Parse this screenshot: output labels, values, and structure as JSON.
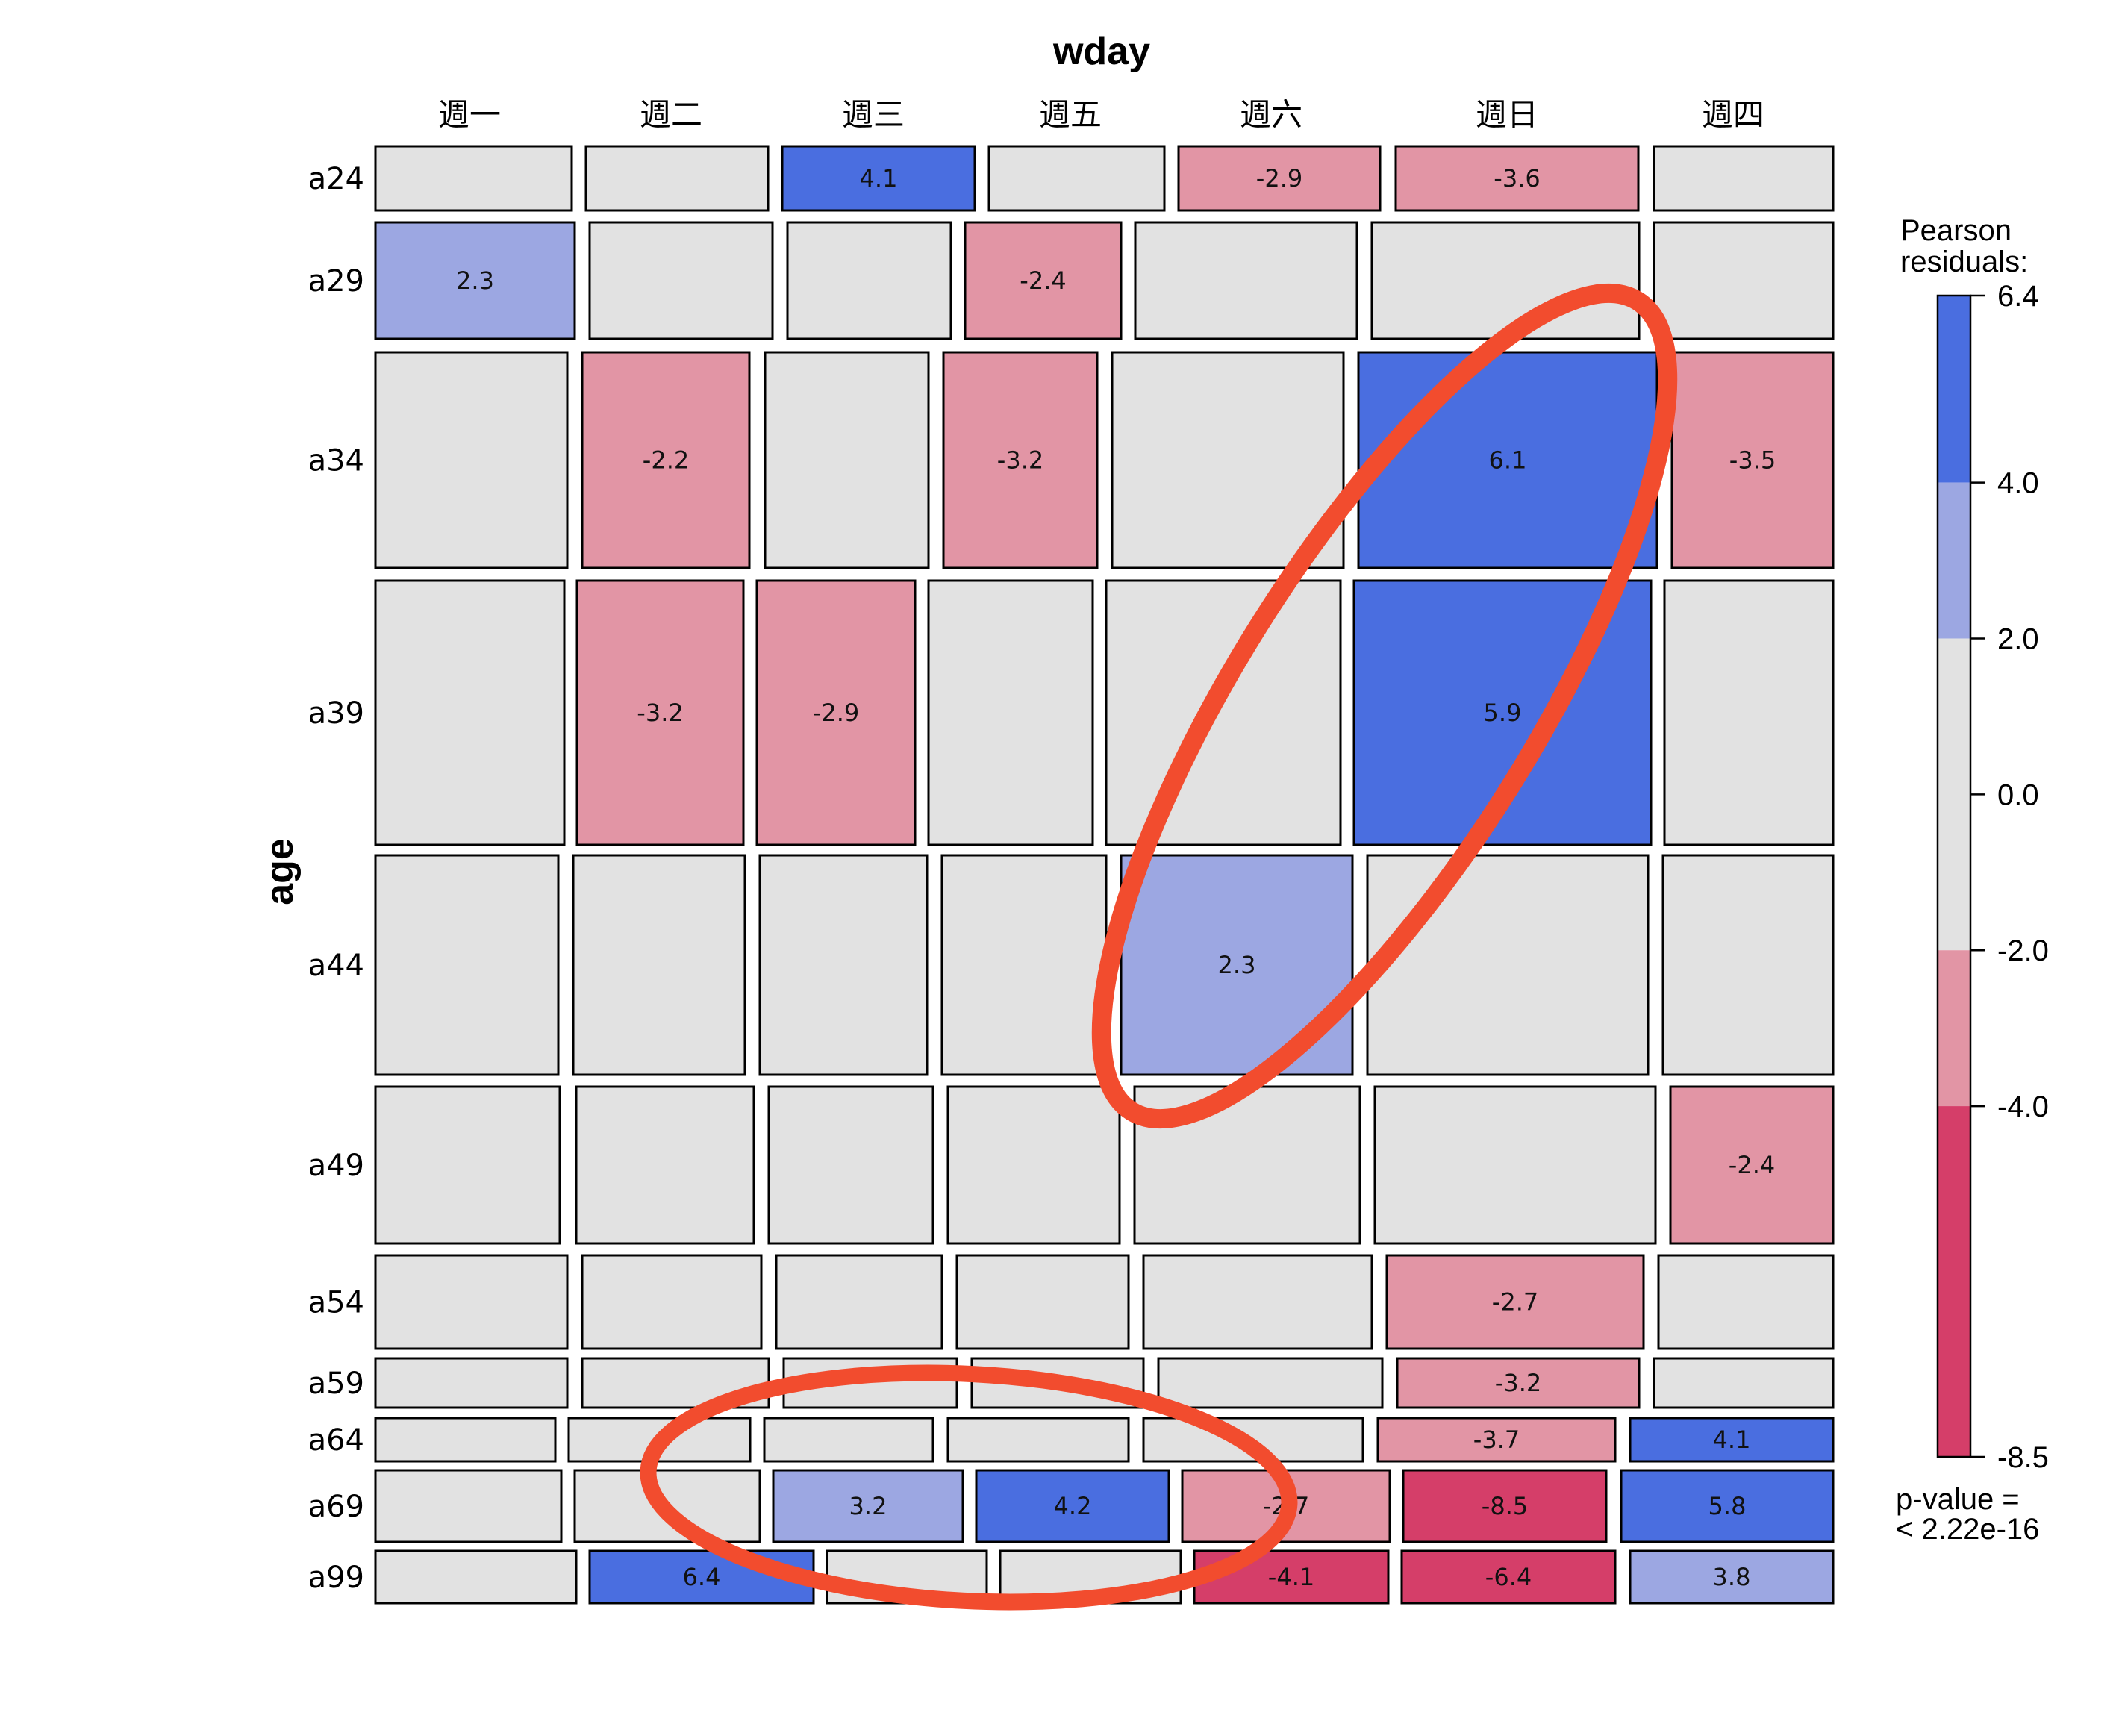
{
  "chart_data": {
    "type": "mosaic",
    "xlabel": "wday",
    "ylabel": "age",
    "columns": [
      "週一",
      "週二",
      "週三",
      "週五",
      "週六",
      "週日",
      "週四"
    ],
    "rows": [
      "a24",
      "a29",
      "a34",
      "a39",
      "a44",
      "a49",
      "a54",
      "a59",
      "a64",
      "a69",
      "a99"
    ],
    "residuals": [
      [
        null,
        null,
        4.1,
        null,
        -2.9,
        -3.6,
        null
      ],
      [
        2.3,
        null,
        null,
        -2.4,
        null,
        null,
        null
      ],
      [
        null,
        -2.2,
        null,
        -3.2,
        null,
        6.1,
        -3.5
      ],
      [
        null,
        -3.2,
        -2.9,
        null,
        null,
        5.9,
        null
      ],
      [
        null,
        null,
        null,
        null,
        2.3,
        null,
        null
      ],
      [
        null,
        null,
        null,
        null,
        null,
        null,
        -2.4
      ],
      [
        null,
        null,
        null,
        null,
        null,
        -2.7,
        null
      ],
      [
        null,
        null,
        null,
        null,
        null,
        -3.2,
        null
      ],
      [
        null,
        null,
        null,
        null,
        null,
        -3.7,
        4.1
      ],
      [
        null,
        null,
        3.2,
        4.2,
        -2.7,
        -8.5,
        5.8
      ],
      [
        null,
        6.4,
        null,
        null,
        -4.1,
        -6.4,
        3.8
      ]
    ],
    "legend": {
      "title_lines": [
        "Pearson",
        "residuals:"
      ],
      "ticks": [
        "6.4",
        "4.0",
        "2.0",
        "0.0",
        "-2.0",
        "-4.0",
        "-8.5"
      ],
      "range": [
        -8.5,
        6.4
      ],
      "footer_lines": [
        "p-value =",
        "< 2.22e-16"
      ]
    },
    "colors": {
      "strong_positive": "#4a6ee0",
      "moderate_positive": "#9ca7e2",
      "neutral": "#e2e2e2",
      "moderate_negative": "#e295a5",
      "strong_negative": "#d53e69",
      "annotation": "#f24c2e"
    }
  }
}
